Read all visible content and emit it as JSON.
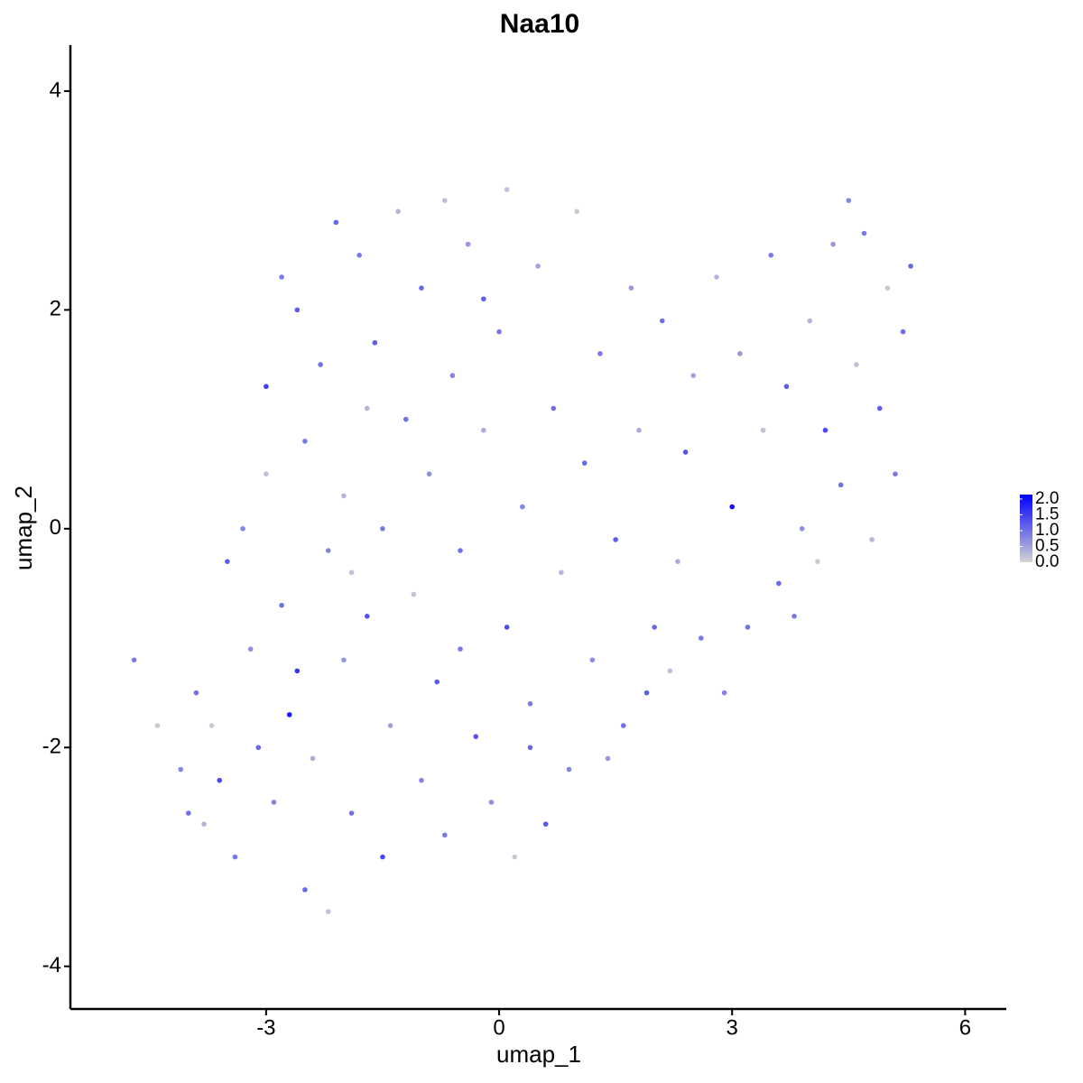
{
  "chart_data": {
    "type": "scatter",
    "title": "Naa10",
    "x_label": "umap_1",
    "y_label": "umap_2",
    "xlim": [
      -5.52,
      6.53
    ],
    "ylim": [
      -4.39,
      4.42
    ],
    "xticks": [
      -3,
      0,
      3,
      6
    ],
    "yticks": [
      -4,
      -2,
      0,
      2,
      4
    ],
    "colors": [
      "#d3d3d3",
      "#0000ff"
    ],
    "color_lim": [
      0,
      2.14
    ],
    "color_ticks": [
      {
        "value": 0,
        "label": "0.0"
      },
      {
        "value": 0.5,
        "label": "0.5"
      },
      {
        "value": 1,
        "label": "1.0"
      },
      {
        "value": 1.5,
        "label": "1.5"
      },
      {
        "value": 2,
        "label": "2.0"
      }
    ],
    "x": [
      -4.7,
      -4.4,
      -4.1,
      -3.9,
      -3.8,
      -3.6,
      -3.5,
      -3.4,
      -3.2,
      -3.1,
      -3.0,
      -3.0,
      -2.9,
      -2.8,
      -2.7,
      -2.6,
      -2.5,
      -2.5,
      -2.4,
      -2.3,
      -2.2,
      -2.2,
      -2.1,
      -2.0,
      -2.0,
      -1.9,
      -1.8,
      -1.7,
      -1.6,
      -1.5,
      -1.5,
      -1.4,
      -1.3,
      -1.2,
      -1.1,
      -1.0,
      -1.0,
      -0.9,
      -0.8,
      -0.7,
      -0.7,
      -0.6,
      -0.5,
      -0.4,
      -0.3,
      -0.2,
      -0.1,
      0.0,
      0.1,
      0.1,
      0.2,
      0.3,
      0.4,
      0.5,
      0.6,
      0.7,
      0.8,
      0.9,
      1.0,
      1.1,
      1.2,
      1.3,
      1.5,
      1.6,
      1.7,
      1.8,
      2.0,
      2.1,
      2.2,
      2.4,
      2.5,
      2.6,
      2.8,
      2.9,
      3.0,
      3.1,
      3.2,
      3.4,
      3.5,
      3.6,
      3.7,
      3.9,
      4.0,
      4.1,
      4.2,
      4.3,
      4.4,
      4.5,
      4.6,
      4.7,
      4.8,
      4.9,
      5.0,
      5.1,
      5.2,
      5.3,
      -3.3,
      -2.6,
      -1.9,
      -0.5,
      0.4,
      1.4,
      -1.7,
      -2.8,
      -0.2,
      3.8,
      2.3,
      1.9,
      -3.7,
      -4.0
    ],
    "values": [
      -1.2,
      -1.8,
      -2.2,
      -1.5,
      -2.7,
      -2.3,
      -0.3,
      -3.0,
      -1.1,
      -2.0,
      0.5,
      1.3,
      -2.5,
      -0.7,
      -1.7,
      2.0,
      -3.3,
      0.8,
      -2.1,
      1.5,
      -3.5,
      -0.2,
      2.8,
      -1.2,
      0.3,
      -2.6,
      2.5,
      -0.8,
      1.7,
      -3.0,
      0.0,
      -1.8,
      2.9,
      1.0,
      -0.6,
      -2.3,
      2.2,
      0.5,
      -1.4,
      3.0,
      -2.8,
      1.4,
      -0.2,
      2.6,
      -1.9,
      0.9,
      -2.5,
      1.8,
      -0.9,
      3.1,
      -3.0,
      0.2,
      -1.6,
      2.4,
      -2.7,
      1.1,
      -0.4,
      -2.2,
      2.9,
      0.6,
      -1.2,
      1.6,
      -0.1,
      -1.8,
      2.2,
      0.9,
      -0.9,
      1.9,
      -1.3,
      0.7,
      1.4,
      -1.0,
      2.3,
      -1.5,
      0.2,
      1.6,
      -0.9,
      0.9,
      2.5,
      -0.5,
      1.3,
      0.0,
      1.9,
      -0.3,
      0.9,
      2.6,
      0.4,
      3.0,
      1.5,
      2.7,
      -0.1,
      1.1,
      2.2,
      0.5,
      1.8,
      2.4,
      0.0,
      -1.3,
      -0.4,
      -1.1,
      -2.0,
      -2.1,
      1.1,
      2.3,
      2.1,
      -0.8,
      -0.3,
      -1.5,
      -1.8,
      -2.6
    ],
    "color_values": [
      0.9,
      0.1,
      0.8,
      1.0,
      0.3,
      1.4,
      1.2,
      0.9,
      0.7,
      1.1,
      0.2,
      1.5,
      0.8,
      1.0,
      1.9,
      1.2,
      1.1,
      0.9,
      0.4,
      1.0,
      0.2,
      0.8,
      1.1,
      0.6,
      0.3,
      1.0,
      0.9,
      1.3,
      1.2,
      1.4,
      0.9,
      0.5,
      0.3,
      1.0,
      0.2,
      0.8,
      1.1,
      0.7,
      1.2,
      0.2,
      0.9,
      0.8,
      1.0,
      0.6,
      1.3,
      0.4,
      0.7,
      0.9,
      1.4,
      0.2,
      0.1,
      0.8,
      0.9,
      0.5,
      1.3,
      1.0,
      0.3,
      0.8,
      0.1,
      1.1,
      0.7,
      0.9,
      1.2,
      1.0,
      0.6,
      0.4,
      1.1,
      1.0,
      0.2,
      1.3,
      0.5,
      0.9,
      0.3,
      0.8,
      2.0,
      0.6,
      1.0,
      0.2,
      0.9,
      1.1,
      1.2,
      0.7,
      0.3,
      0.1,
      1.4,
      0.6,
      1.0,
      0.8,
      0.2,
      0.9,
      0.3,
      1.2,
      0.1,
      0.9,
      1.0,
      1.1,
      0.8,
      1.6,
      0.2,
      0.9,
      1.1,
      0.6,
      0.3,
      0.9,
      1.2,
      0.9,
      0.4,
      1.2,
      0.1,
      1.0
    ]
  }
}
